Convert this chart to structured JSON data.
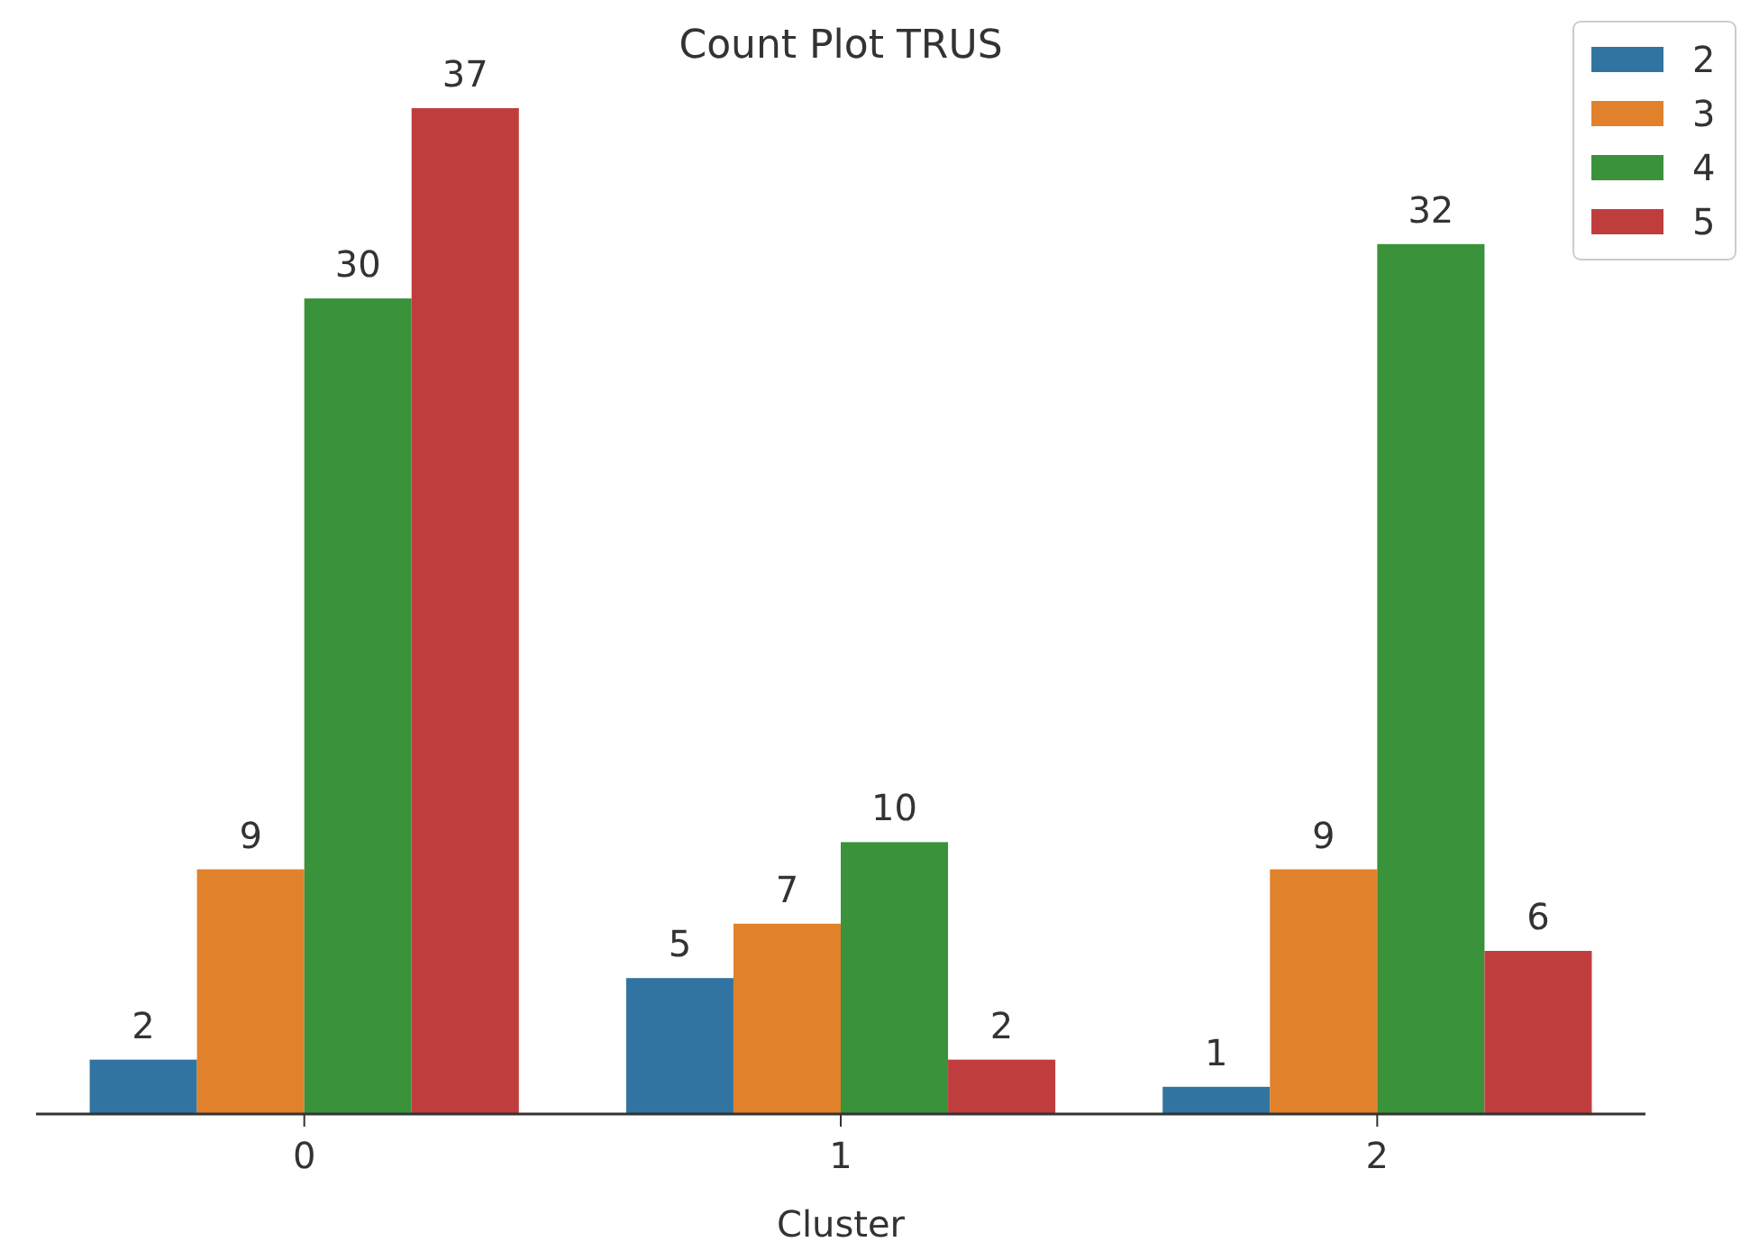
{
  "chart_data": {
    "type": "bar",
    "title": "Count Plot TRUS",
    "xlabel": "Cluster",
    "categories": [
      "0",
      "1",
      "2"
    ],
    "series": [
      {
        "name": "2",
        "color": "#3274a1",
        "values": [
          2,
          5,
          1
        ]
      },
      {
        "name": "3",
        "color": "#e1812c",
        "values": [
          9,
          7,
          9
        ]
      },
      {
        "name": "4",
        "color": "#3a923a",
        "values": [
          30,
          10,
          32
        ]
      },
      {
        "name": "5",
        "color": "#c03d3e",
        "values": [
          37,
          2,
          6
        ]
      }
    ],
    "data_labels": true,
    "legend": "top right"
  }
}
